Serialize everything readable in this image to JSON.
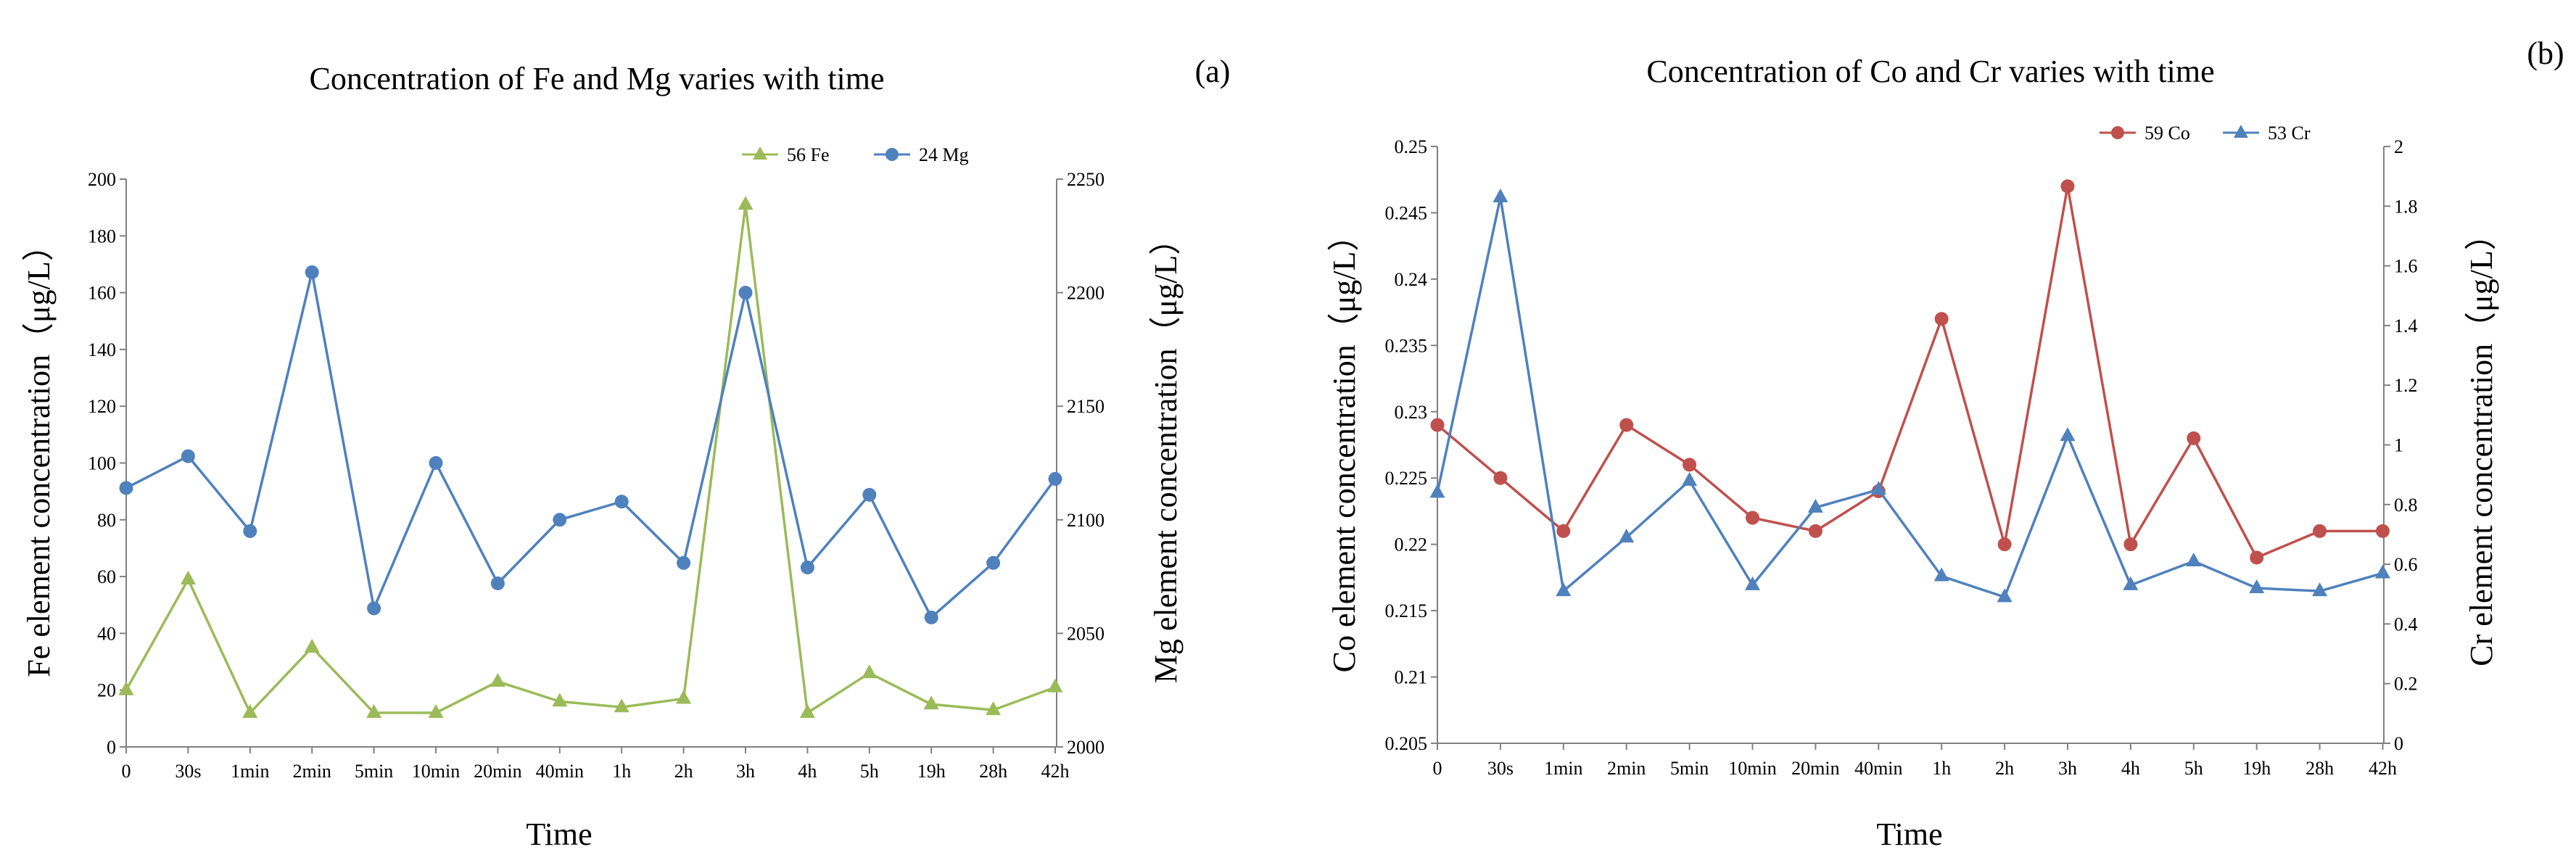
{
  "chart_data": [
    {
      "type": "line",
      "panel_label": "(a)",
      "title": "Concentration of Fe and Mg varies with time",
      "xlabel": "Time",
      "ylabel_left": "Fe element concentration（μg/L）",
      "ylabel_right": "Mg element concentration（μg/L）",
      "categories": [
        "0",
        "30s",
        "1min",
        "2min",
        "5min",
        "10min",
        "20min",
        "40min",
        "1h",
        "2h",
        "3h",
        "4h",
        "5h",
        "19h",
        "28h",
        "42h"
      ],
      "ylim_left": [
        0,
        200
      ],
      "yticks_left": [
        0,
        20,
        40,
        60,
        80,
        100,
        120,
        140,
        160,
        180,
        200
      ],
      "ylim_right": [
        2000,
        2250
      ],
      "yticks_right": [
        2000,
        2050,
        2100,
        2150,
        2200,
        2250
      ],
      "legend_position": "top-right",
      "series": [
        {
          "name": "56 Fe",
          "axis": "left",
          "color": "#9bbb59",
          "marker": "triangle",
          "values": [
            20,
            59,
            12,
            35,
            12,
            12,
            23,
            16,
            14,
            17,
            191,
            12,
            26,
            15,
            13,
            21
          ]
        },
        {
          "name": "24 Mg",
          "axis": "right",
          "color": "#4f81bd",
          "marker": "circle",
          "values": [
            2114,
            2128,
            2095,
            2209,
            2061,
            2125,
            2072,
            2100,
            2108,
            2081,
            2200,
            2079,
            2111,
            2057,
            2081,
            2118
          ]
        }
      ]
    },
    {
      "type": "line",
      "panel_label": "(b)",
      "title": "Concentration of  Co and Cr  varies with time",
      "xlabel": "Time",
      "ylabel_left": "Co element concentration（μg/L）",
      "ylabel_right": "Cr element concentration（μg/L）",
      "categories": [
        "0",
        "30s",
        "1min",
        "2min",
        "5min",
        "10min",
        "20min",
        "40min",
        "1h",
        "2h",
        "3h",
        "4h",
        "5h",
        "19h",
        "28h",
        "42h"
      ],
      "ylim_left": [
        0.205,
        0.25
      ],
      "yticks_left": [
        "0.205",
        "0.21",
        "0.215",
        "0.22",
        "0.225",
        "0.23",
        "0.235",
        "0.24",
        "0.245",
        "0.25"
      ],
      "ylim_right": [
        0,
        2
      ],
      "yticks_right": [
        "0",
        "0.2",
        "0.4",
        "0.6",
        "0.8",
        "1",
        "1.2",
        "1.4",
        "1.6",
        "1.8",
        "2"
      ],
      "legend_position": "top-right",
      "series": [
        {
          "name": "59 Co",
          "axis": "left",
          "color": "#c0504d",
          "marker": "circle",
          "values": [
            0.229,
            0.225,
            0.221,
            0.229,
            0.226,
            0.222,
            0.221,
            0.224,
            0.237,
            0.22,
            0.247,
            0.22,
            0.228,
            0.219,
            0.221,
            0.221
          ]
        },
        {
          "name": "53 Cr",
          "axis": "right",
          "color": "#4f81bd",
          "marker": "triangle",
          "values": [
            0.84,
            1.83,
            0.51,
            0.69,
            0.88,
            0.53,
            0.79,
            0.85,
            0.56,
            0.49,
            1.03,
            0.53,
            0.61,
            0.52,
            0.51,
            0.57
          ]
        }
      ]
    }
  ]
}
